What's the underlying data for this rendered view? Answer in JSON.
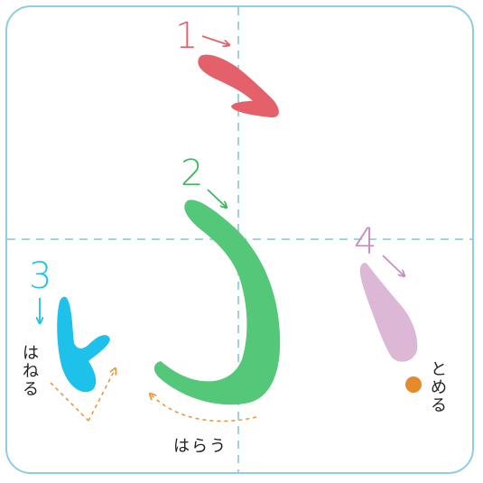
{
  "strokes": [
    {
      "number": "1",
      "color": "#e4616b"
    },
    {
      "number": "2",
      "color": "#3db861"
    },
    {
      "number": "3",
      "color": "#1ec1ea"
    },
    {
      "number": "4",
      "color": "#c58fbf"
    }
  ],
  "labels": {
    "hane": "はねる",
    "harai": "はらう",
    "tome": "とめる"
  },
  "colors": {
    "guide": "#7ec8dc",
    "hint_arrow": "#e79a3c",
    "tome_dot": "#e68a2e",
    "frame": "#8fcde2"
  }
}
